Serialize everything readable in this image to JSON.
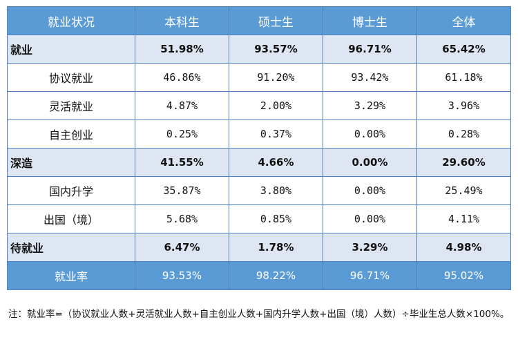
{
  "table": {
    "header": [
      "就业状况",
      "本科生",
      "硕士生",
      "博士生",
      "全体"
    ],
    "rows": [
      {
        "type": "cat",
        "label": "就业",
        "values": [
          "51.98%",
          "93.57%",
          "96.71%",
          "65.42%"
        ]
      },
      {
        "type": "sub",
        "label": "协议就业",
        "values": [
          "46.86%",
          "91.20%",
          "93.42%",
          "61.18%"
        ]
      },
      {
        "type": "sub",
        "label": "灵活就业",
        "values": [
          "4.87%",
          "2.00%",
          "3.29%",
          "3.96%"
        ]
      },
      {
        "type": "sub",
        "label": "自主创业",
        "values": [
          "0.25%",
          "0.37%",
          "0.00%",
          "0.28%"
        ]
      },
      {
        "type": "cat",
        "label": "深造",
        "values": [
          "41.55%",
          "4.66%",
          "0.00%",
          "29.60%"
        ]
      },
      {
        "type": "sub",
        "label": "国内升学",
        "values": [
          "35.87%",
          "3.80%",
          "0.00%",
          "25.49%"
        ]
      },
      {
        "type": "sub",
        "label": "出国（境）",
        "values": [
          "5.68%",
          "0.85%",
          "0.00%",
          "4.11%"
        ]
      },
      {
        "type": "cat",
        "label": "待就业",
        "values": [
          "6.47%",
          "1.78%",
          "3.29%",
          "4.98%"
        ]
      },
      {
        "type": "total",
        "label": "就业率",
        "values": [
          "93.53%",
          "98.22%",
          "96.71%",
          "95.02%"
        ]
      }
    ]
  },
  "note": "注：就业率=（协议就业人数+灵活就业人数+自主创业人数+国内升学人数+出国（境）人数）÷毕业生总人数×100%。"
}
